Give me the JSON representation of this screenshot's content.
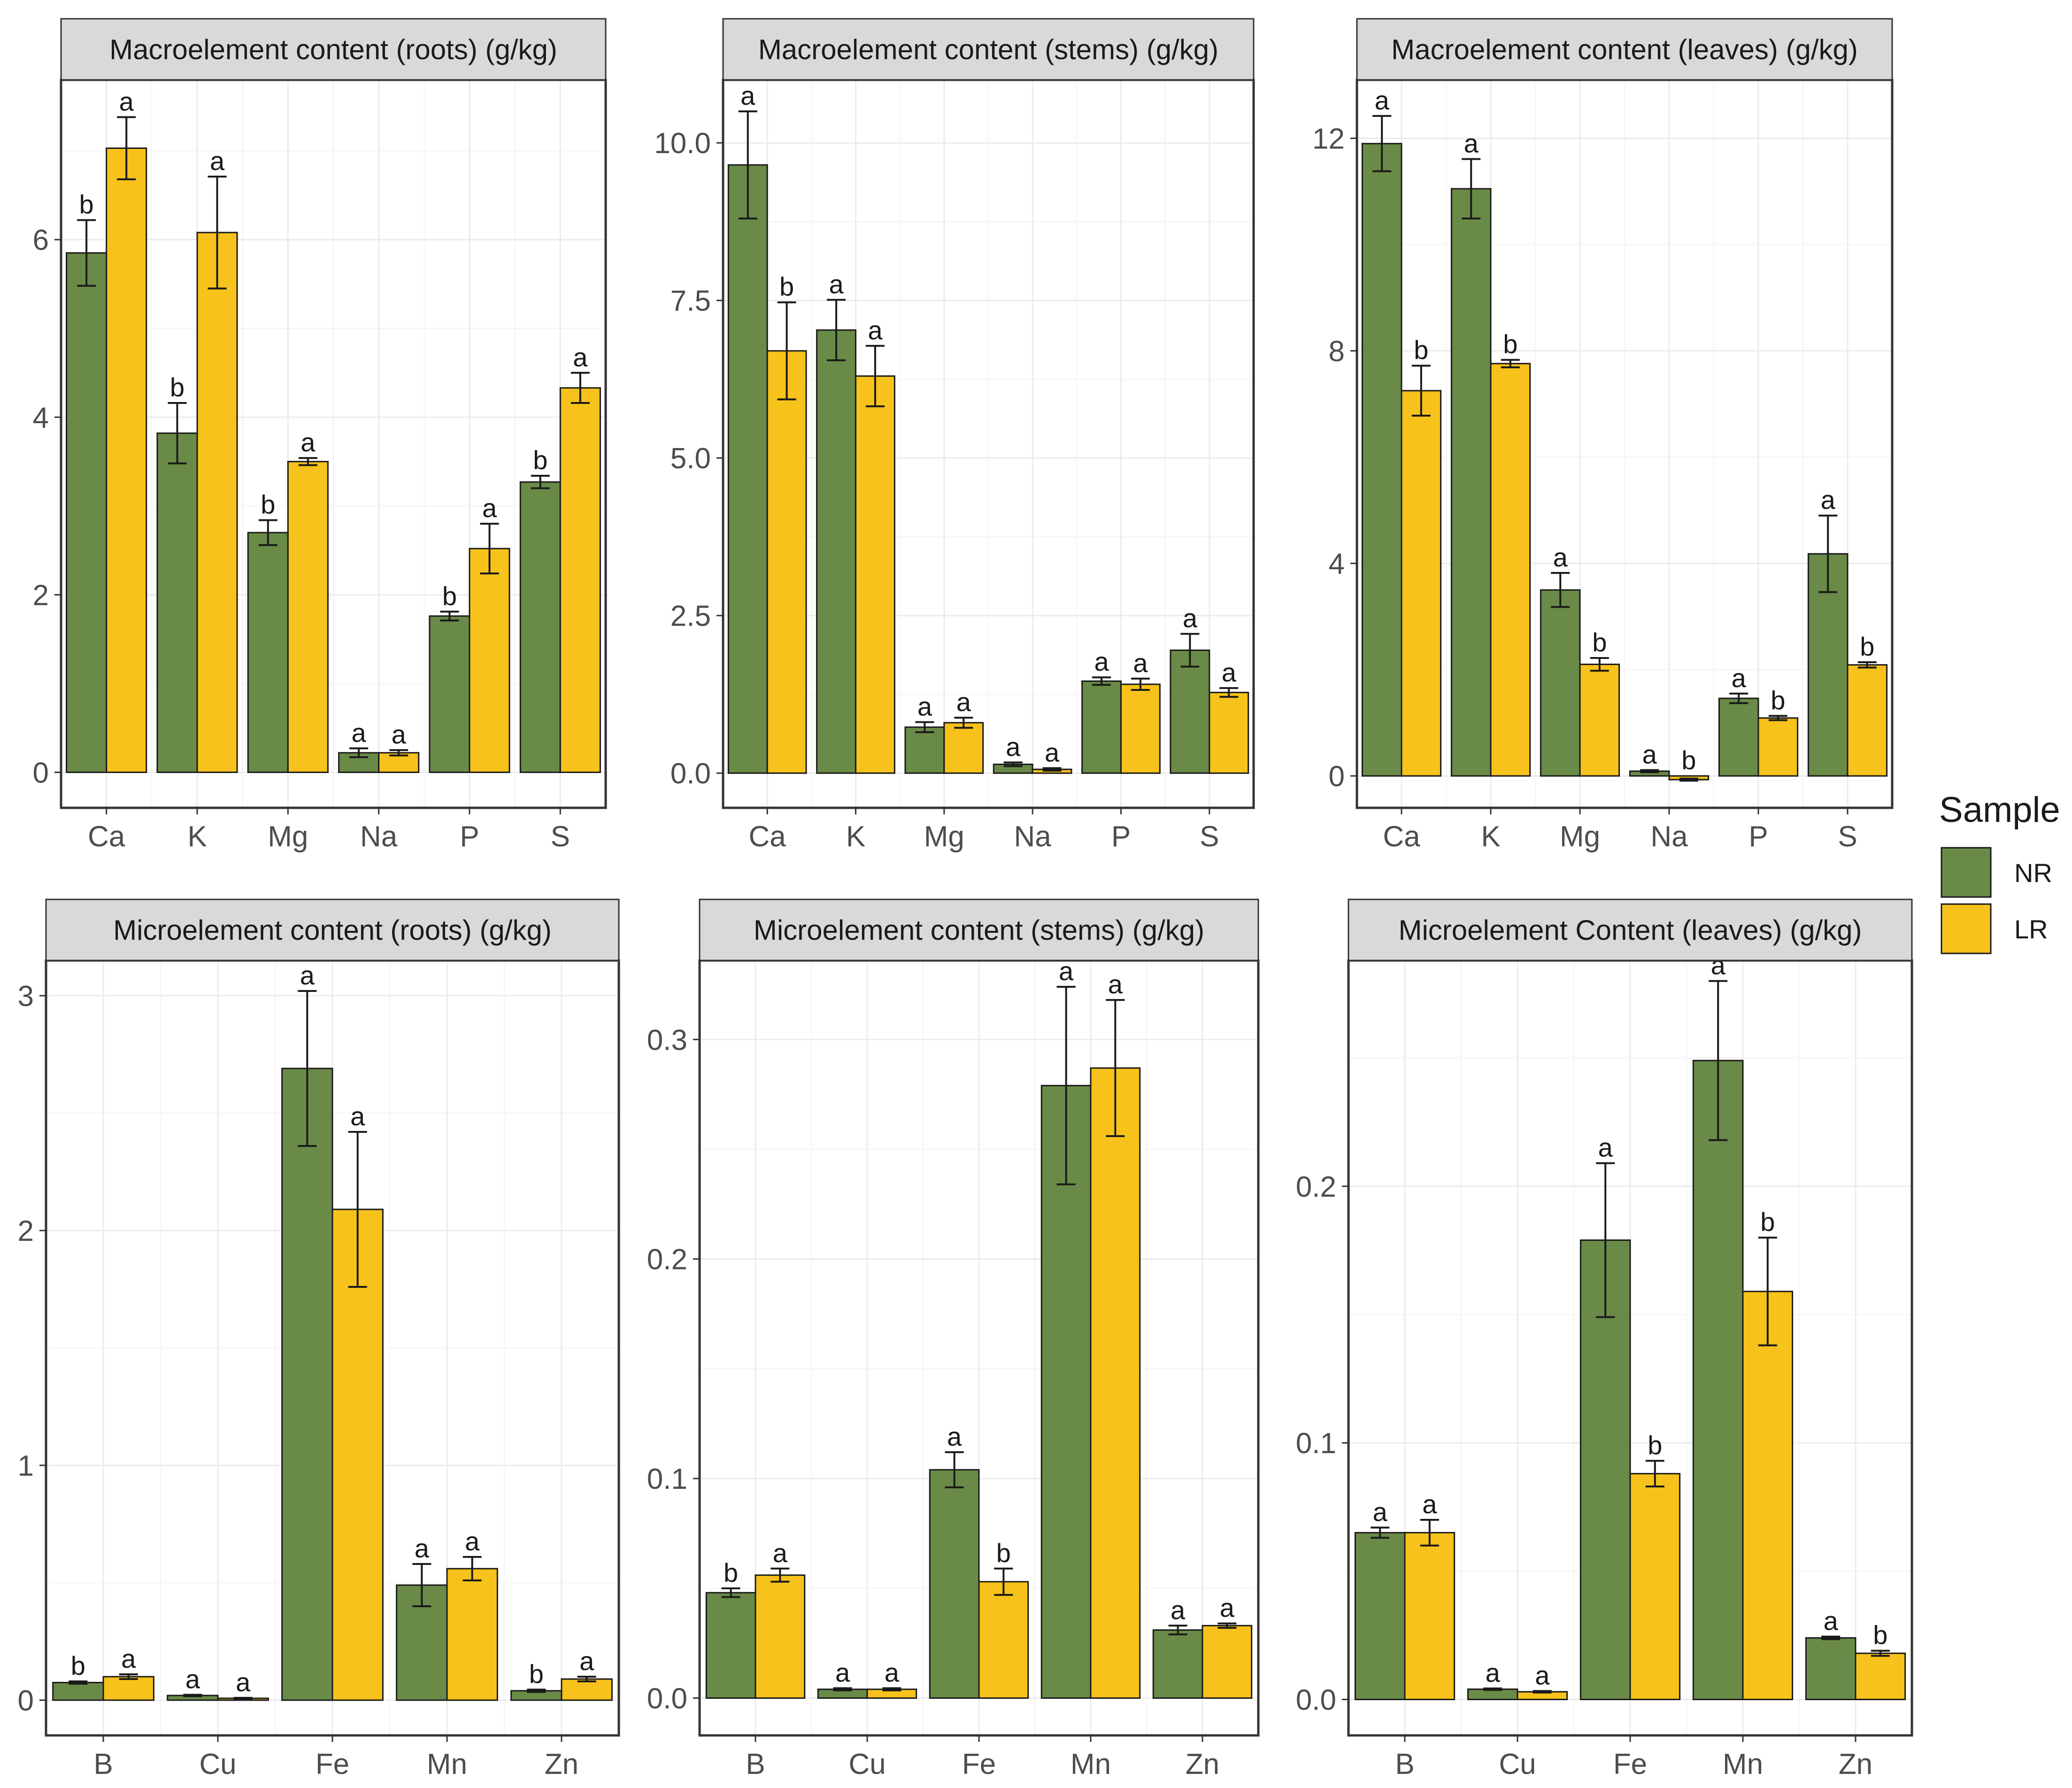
{
  "colors": {
    "NR": "#6a8a47",
    "LR": "#f7c21b"
  },
  "legend": {
    "title": "Sample",
    "items": [
      {
        "label": "NR",
        "color": "#6a8a47"
      },
      {
        "label": "LR",
        "color": "#f7c21b"
      }
    ]
  },
  "chart_data": [
    {
      "type": "bar",
      "title": "Macroelement content (roots) (g/kg)",
      "categories": [
        "Ca",
        "K",
        "Mg",
        "Na",
        "P",
        "S"
      ],
      "ylim": [
        -0.4,
        7.8
      ],
      "yticks": [
        0,
        2,
        4,
        6
      ],
      "series": [
        {
          "name": "NR",
          "values": [
            5.85,
            3.82,
            2.7,
            0.22,
            1.76,
            3.27
          ],
          "errors": [
            0.37,
            0.34,
            0.14,
            0.05,
            0.05,
            0.07
          ],
          "labels": [
            "b",
            "b",
            "b",
            "a",
            "b",
            "b"
          ]
        },
        {
          "name": "LR",
          "values": [
            7.03,
            6.08,
            3.5,
            0.22,
            2.52,
            4.33
          ],
          "errors": [
            0.35,
            0.63,
            0.04,
            0.03,
            0.28,
            0.17
          ],
          "labels": [
            "a",
            "a",
            "a",
            "a",
            "a",
            "a"
          ]
        }
      ]
    },
    {
      "type": "bar",
      "title": "Macroelement content (stems) (g/kg)",
      "categories": [
        "Ca",
        "K",
        "Mg",
        "Na",
        "P",
        "S"
      ],
      "ylim": [
        -0.55,
        11.0
      ],
      "yticks": [
        0.0,
        2.5,
        5.0,
        7.5,
        10.0
      ],
      "series": [
        {
          "name": "NR",
          "values": [
            9.65,
            7.03,
            0.73,
            0.14,
            1.46,
            1.95
          ],
          "errors": [
            0.85,
            0.48,
            0.08,
            0.03,
            0.06,
            0.26
          ],
          "labels": [
            "a",
            "a",
            "a",
            "a",
            "a",
            "a"
          ]
        },
        {
          "name": "LR",
          "values": [
            6.7,
            6.3,
            0.8,
            0.06,
            1.41,
            1.28
          ],
          "errors": [
            0.77,
            0.48,
            0.08,
            0.02,
            0.09,
            0.07
          ],
          "labels": [
            "b",
            "a",
            "a",
            "a",
            "a",
            "a"
          ]
        }
      ]
    },
    {
      "type": "bar",
      "title": "Macroelement content (leaves) (g/kg)",
      "categories": [
        "Ca",
        "K",
        "Mg",
        "Na",
        "P",
        "S"
      ],
      "ylim": [
        -0.6,
        13.1
      ],
      "yticks": [
        0,
        4,
        8,
        12
      ],
      "series": [
        {
          "name": "NR",
          "values": [
            11.9,
            11.05,
            3.5,
            0.09,
            1.46,
            4.18
          ],
          "errors": [
            0.52,
            0.56,
            0.32,
            0.02,
            0.09,
            0.72
          ],
          "labels": [
            "a",
            "a",
            "a",
            "a",
            "a",
            "a"
          ]
        },
        {
          "name": "LR",
          "values": [
            7.25,
            7.76,
            2.1,
            -0.07,
            1.09,
            2.09
          ],
          "errors": [
            0.47,
            0.07,
            0.12,
            0.02,
            0.04,
            0.05
          ],
          "labels": [
            "b",
            "b",
            "b",
            "b",
            "b",
            "b"
          ]
        }
      ]
    },
    {
      "type": "bar",
      "title": "Microelement content (roots) (g/kg)",
      "categories": [
        "B",
        "Cu",
        "Fe",
        "Mn",
        "Zn"
      ],
      "ylim": [
        -0.15,
        3.15
      ],
      "yticks": [
        0,
        1,
        2,
        3
      ],
      "series": [
        {
          "name": "NR",
          "values": [
            0.075,
            0.02,
            2.69,
            0.49,
            0.04
          ],
          "errors": [
            0.005,
            0.003,
            0.33,
            0.09,
            0.005
          ],
          "labels": [
            "b",
            "a",
            "a",
            "a",
            "b"
          ]
        },
        {
          "name": "LR",
          "values": [
            0.1,
            0.008,
            2.09,
            0.56,
            0.09
          ],
          "errors": [
            0.01,
            0.002,
            0.33,
            0.05,
            0.01
          ],
          "labels": [
            "a",
            "a",
            "a",
            "a",
            "a"
          ]
        }
      ]
    },
    {
      "type": "bar",
      "title": "Microelement content (stems) (g/kg)",
      "categories": [
        "B",
        "Cu",
        "Fe",
        "Mn",
        "Zn"
      ],
      "ylim": [
        -0.017,
        0.336
      ],
      "yticks": [
        0.0,
        0.1,
        0.2,
        0.3
      ],
      "series": [
        {
          "name": "NR",
          "values": [
            0.048,
            0.004,
            0.104,
            0.279,
            0.031
          ],
          "errors": [
            0.002,
            0.0005,
            0.008,
            0.045,
            0.002
          ],
          "labels": [
            "b",
            "a",
            "a",
            "a",
            "a"
          ]
        },
        {
          "name": "LR",
          "values": [
            0.056,
            0.004,
            0.053,
            0.287,
            0.033
          ],
          "errors": [
            0.003,
            0.0005,
            0.006,
            0.031,
            0.001
          ],
          "labels": [
            "a",
            "a",
            "b",
            "a",
            "a"
          ]
        }
      ]
    },
    {
      "type": "bar",
      "title": "Microelement Content (leaves) (g/kg)",
      "categories": [
        "B",
        "Cu",
        "Fe",
        "Mn",
        "Zn"
      ],
      "ylim": [
        -0.014,
        0.288
      ],
      "yticks": [
        0.0,
        0.1,
        0.2
      ],
      "series": [
        {
          "name": "NR",
          "values": [
            0.065,
            0.004,
            0.179,
            0.249,
            0.024
          ],
          "errors": [
            0.002,
            0.0003,
            0.03,
            0.031,
            0.0005
          ],
          "labels": [
            "a",
            "a",
            "a",
            "a",
            "a"
          ]
        },
        {
          "name": "LR",
          "values": [
            0.065,
            0.003,
            0.088,
            0.159,
            0.018
          ],
          "errors": [
            0.005,
            0.0003,
            0.005,
            0.021,
            0.001
          ],
          "labels": [
            "a",
            "a",
            "b",
            "b",
            "b"
          ]
        }
      ]
    }
  ]
}
